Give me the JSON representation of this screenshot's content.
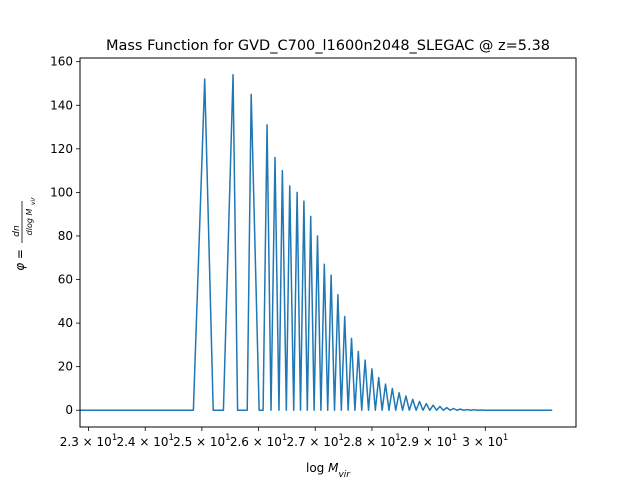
{
  "chart_data": {
    "type": "line",
    "title": "Mass Function for GVD_C700_l1600n2048_SLEGAC @ z=5.38",
    "xlabel": "log M_vir",
    "ylabel": "φ = dn / dlog M_vir",
    "xlim": [
      22.85,
      31.6
    ],
    "ylim": [
      -7.7,
      161.7
    ],
    "grid": false,
    "legend": "none",
    "line_color": "#1f77b4",
    "x_ticks": [
      {
        "value": 23,
        "base": "2.3 × 10",
        "exp": "1"
      },
      {
        "value": 24,
        "base": "2.4 × 10",
        "exp": "1"
      },
      {
        "value": 25,
        "base": "2.5 × 10",
        "exp": "1"
      },
      {
        "value": 26,
        "base": "2.6 × 10",
        "exp": "1"
      },
      {
        "value": 27,
        "base": "2.7 × 10",
        "exp": "1"
      },
      {
        "value": 28,
        "base": "2.8 × 10",
        "exp": "1"
      },
      {
        "value": 29,
        "base": "2.9 × 10",
        "exp": "1"
      },
      {
        "value": 30,
        "base": "3 × 10",
        "exp": "1"
      }
    ],
    "y_ticks": [
      {
        "value": 0,
        "label": "0"
      },
      {
        "value": 20,
        "label": "20"
      },
      {
        "value": 40,
        "label": "40"
      },
      {
        "value": 60,
        "label": "60"
      },
      {
        "value": 80,
        "label": "80"
      },
      {
        "value": 100,
        "label": "100"
      },
      {
        "value": 120,
        "label": "120"
      },
      {
        "value": 140,
        "label": "140"
      },
      {
        "value": 160,
        "label": "160"
      }
    ],
    "series": [
      {
        "x": [
          22.85,
          24.85,
          25.05,
          25.2,
          25.38,
          25.55,
          25.63,
          25.8,
          25.87,
          26.01,
          26.08,
          26.15,
          26.22,
          26.29,
          26.36,
          26.42,
          26.49,
          26.55,
          26.62,
          26.68,
          26.74,
          26.8,
          26.86,
          26.92,
          26.98,
          27.04,
          27.1,
          27.16,
          27.22,
          27.28,
          27.34,
          27.4,
          27.46,
          27.52,
          27.58,
          27.64,
          27.7,
          27.76,
          27.82,
          27.88,
          27.94,
          28.0,
          28.06,
          28.12,
          28.18,
          28.24,
          28.3,
          28.36,
          28.42,
          28.48,
          28.54,
          28.6,
          28.66,
          28.72,
          28.78,
          28.84,
          28.9,
          28.96,
          29.02,
          29.08,
          29.14,
          29.2,
          29.26,
          29.32,
          29.38,
          29.44,
          29.5,
          29.56,
          29.62,
          29.68,
          29.74,
          29.8,
          29.86,
          29.92,
          29.98,
          30.04,
          30.1,
          30.16,
          30.22,
          30.28,
          30.34,
          30.4,
          30.46,
          30.52,
          30.58,
          30.64,
          30.7,
          30.76,
          30.82,
          30.88,
          30.94,
          31.0,
          31.06,
          31.12,
          31.18
        ],
        "y": [
          0,
          0,
          152,
          0,
          0,
          154,
          0,
          0,
          145,
          0,
          0,
          131,
          0,
          116,
          0,
          110,
          0,
          103,
          0,
          100,
          0,
          96,
          0,
          89,
          0,
          80,
          0,
          67,
          0,
          62,
          0,
          53,
          0,
          43,
          0,
          33,
          0,
          27,
          0,
          23,
          0,
          19,
          0,
          15,
          0,
          12,
          0,
          10,
          0,
          8,
          0,
          6.5,
          0,
          5,
          0,
          4,
          0,
          3,
          0,
          2.3,
          0,
          1.7,
          0,
          1.2,
          0,
          0.8,
          0,
          0.5,
          0,
          0.3,
          0,
          0.2,
          0,
          0.1,
          0,
          0,
          0,
          0,
          0,
          0,
          0,
          0,
          0,
          0,
          0,
          0,
          0,
          0,
          0,
          0,
          0,
          0,
          0,
          0,
          0
        ]
      }
    ]
  }
}
